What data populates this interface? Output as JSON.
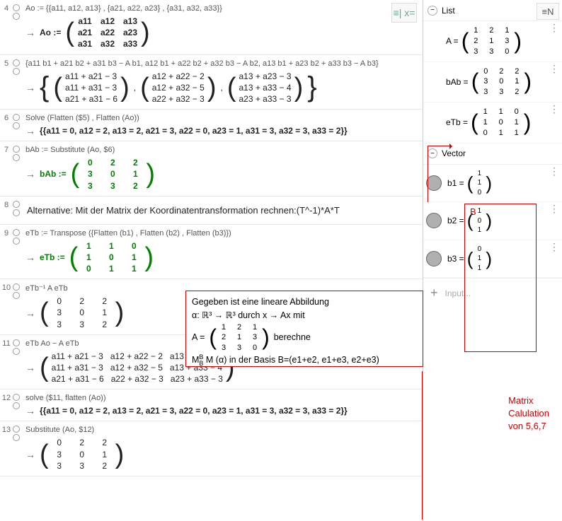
{
  "cas": {
    "rows": [
      {
        "n": "4",
        "input": "Ao := {{a11, a12, a13} , {a21, a22, a23} , {a31, a32, a33}}",
        "lhs": "Ao :=",
        "matrix": [
          [
            "a11",
            "a12",
            "a13"
          ],
          [
            "a21",
            "a22",
            "a23"
          ],
          [
            "a31",
            "a32",
            "a33"
          ]
        ],
        "bold": true
      },
      {
        "n": "5",
        "input": "{a11 b1 + a21 b2 + a31 b3 − A b1, a12 b1 + a22 b2 + a32 b3 − A b2, a13 b1 + a23 b2 + a33 b3 − A b3}",
        "triple": [
          [
            [
              "a11 + a21 − 3"
            ],
            [
              "a11 + a31 − 3"
            ],
            [
              "a21 + a31 − 6"
            ]
          ],
          [
            [
              "a12 + a22 − 2"
            ],
            [
              "a12 + a32 − 5"
            ],
            [
              "a22 + a32 − 3"
            ]
          ],
          [
            [
              "a13 + a23 − 3"
            ],
            [
              "a13 + a33 − 4"
            ],
            [
              "a23 + a33 − 3"
            ]
          ]
        ]
      },
      {
        "n": "6",
        "input": "Solve (Flatten ($5) , Flatten (Ao))",
        "text": "{{a11 = 0, a12 = 2, a13 = 2, a21 = 3, a22 = 0, a23 = 1, a31 = 3, a32 = 3, a33 = 2}}",
        "bold": true
      },
      {
        "n": "7",
        "input": "bAb := Substitute (Ao, $6)",
        "lhs": "bAb :=",
        "matrix": [
          [
            "0",
            "2",
            "2"
          ],
          [
            "3",
            "0",
            "1"
          ],
          [
            "3",
            "3",
            "2"
          ]
        ],
        "green": true
      },
      {
        "n": "8",
        "plain": "Alternative:  Mit der Matrix der Koordinatentransformation rechnen:(T^-1)*A*T"
      },
      {
        "n": "9",
        "input": "eTb := Transpose ({Flatten (b1) , Flatten (b2) , Flatten (b3)})",
        "lhs": "eTb :=",
        "matrix": [
          [
            "1",
            "1",
            "0"
          ],
          [
            "1",
            "0",
            "1"
          ],
          [
            "0",
            "1",
            "1"
          ]
        ],
        "green": true
      },
      {
        "n": "10",
        "input": "eTb⁻¹ A eTb",
        "matrix": [
          [
            "0",
            "2",
            "2"
          ],
          [
            "3",
            "0",
            "1"
          ],
          [
            "3",
            "3",
            "2"
          ]
        ]
      },
      {
        "n": "11",
        "input": "eTb Ao − A eTb",
        "matrix": [
          [
            "a11 + a21 − 3",
            "a12 + a22 − 2",
            "a13 + a23 − 3"
          ],
          [
            "a11 + a31 − 3",
            "a12 + a32 − 5",
            "a13 + a33 − 4"
          ],
          [
            "a21 + a31 − 6",
            "a22 + a32 − 3",
            "a23 + a33 − 3"
          ]
        ]
      },
      {
        "n": "12",
        "input": "solve ($11, flatten (Ao))",
        "text": "{{a11 = 0, a12 = 2, a13 = 2, a21 = 3, a22 = 0, a23 = 1, a31 = 3, a32 = 3, a33 = 2}}",
        "bold": true
      },
      {
        "n": "13",
        "input": "Substitute (Ao, $12)",
        "matrix": [
          [
            "0",
            "2",
            "2"
          ],
          [
            "3",
            "0",
            "1"
          ],
          [
            "3",
            "3",
            "2"
          ]
        ]
      }
    ],
    "toolbar_icon_label": "≡| x="
  },
  "problem": {
    "l1": "Gegeben ist eine lineare Abbildung",
    "l2": "α: ℝ³ → ℝ³ durch x → Ax mit",
    "l3a": "A =",
    "l3b": "berechne",
    "matrix": [
      [
        "1",
        "2",
        "1"
      ],
      [
        "2",
        "1",
        "3"
      ],
      [
        "3",
        "3",
        "0"
      ]
    ],
    "l4": "M  (α) in der Basis B=(e1+e2, e1+e3, e2+e3)",
    "l4sup": "B",
    "l4sub": "B"
  },
  "algebra": {
    "list_label": "List",
    "vector_label": "Vector",
    "graph_icon": "≡N",
    "items_list": [
      {
        "label": "A =",
        "m": [
          [
            "1",
            "2",
            "1"
          ],
          [
            "2",
            "1",
            "3"
          ],
          [
            "3",
            "3",
            "0"
          ]
        ]
      },
      {
        "label": "bAb =",
        "m": [
          [
            "0",
            "2",
            "2"
          ],
          [
            "3",
            "0",
            "1"
          ],
          [
            "3",
            "3",
            "2"
          ]
        ]
      },
      {
        "label": "eTb =",
        "m": [
          [
            "1",
            "1",
            "0"
          ],
          [
            "1",
            "0",
            "1"
          ],
          [
            "0",
            "1",
            "1"
          ]
        ]
      }
    ],
    "items_vec": [
      {
        "label": "b1 =",
        "v": [
          "1",
          "1",
          "0"
        ]
      },
      {
        "label": "b2 =",
        "v": [
          "1",
          "0",
          "1"
        ]
      },
      {
        "label": "b3 =",
        "v": [
          "0",
          "1",
          "1"
        ]
      }
    ],
    "input_placeholder": "Input..."
  },
  "annotations": {
    "b_label": "B",
    "note_l1": "Matrix",
    "note_l2": "Calulation",
    "note_l3": "von 5,6,7"
  }
}
